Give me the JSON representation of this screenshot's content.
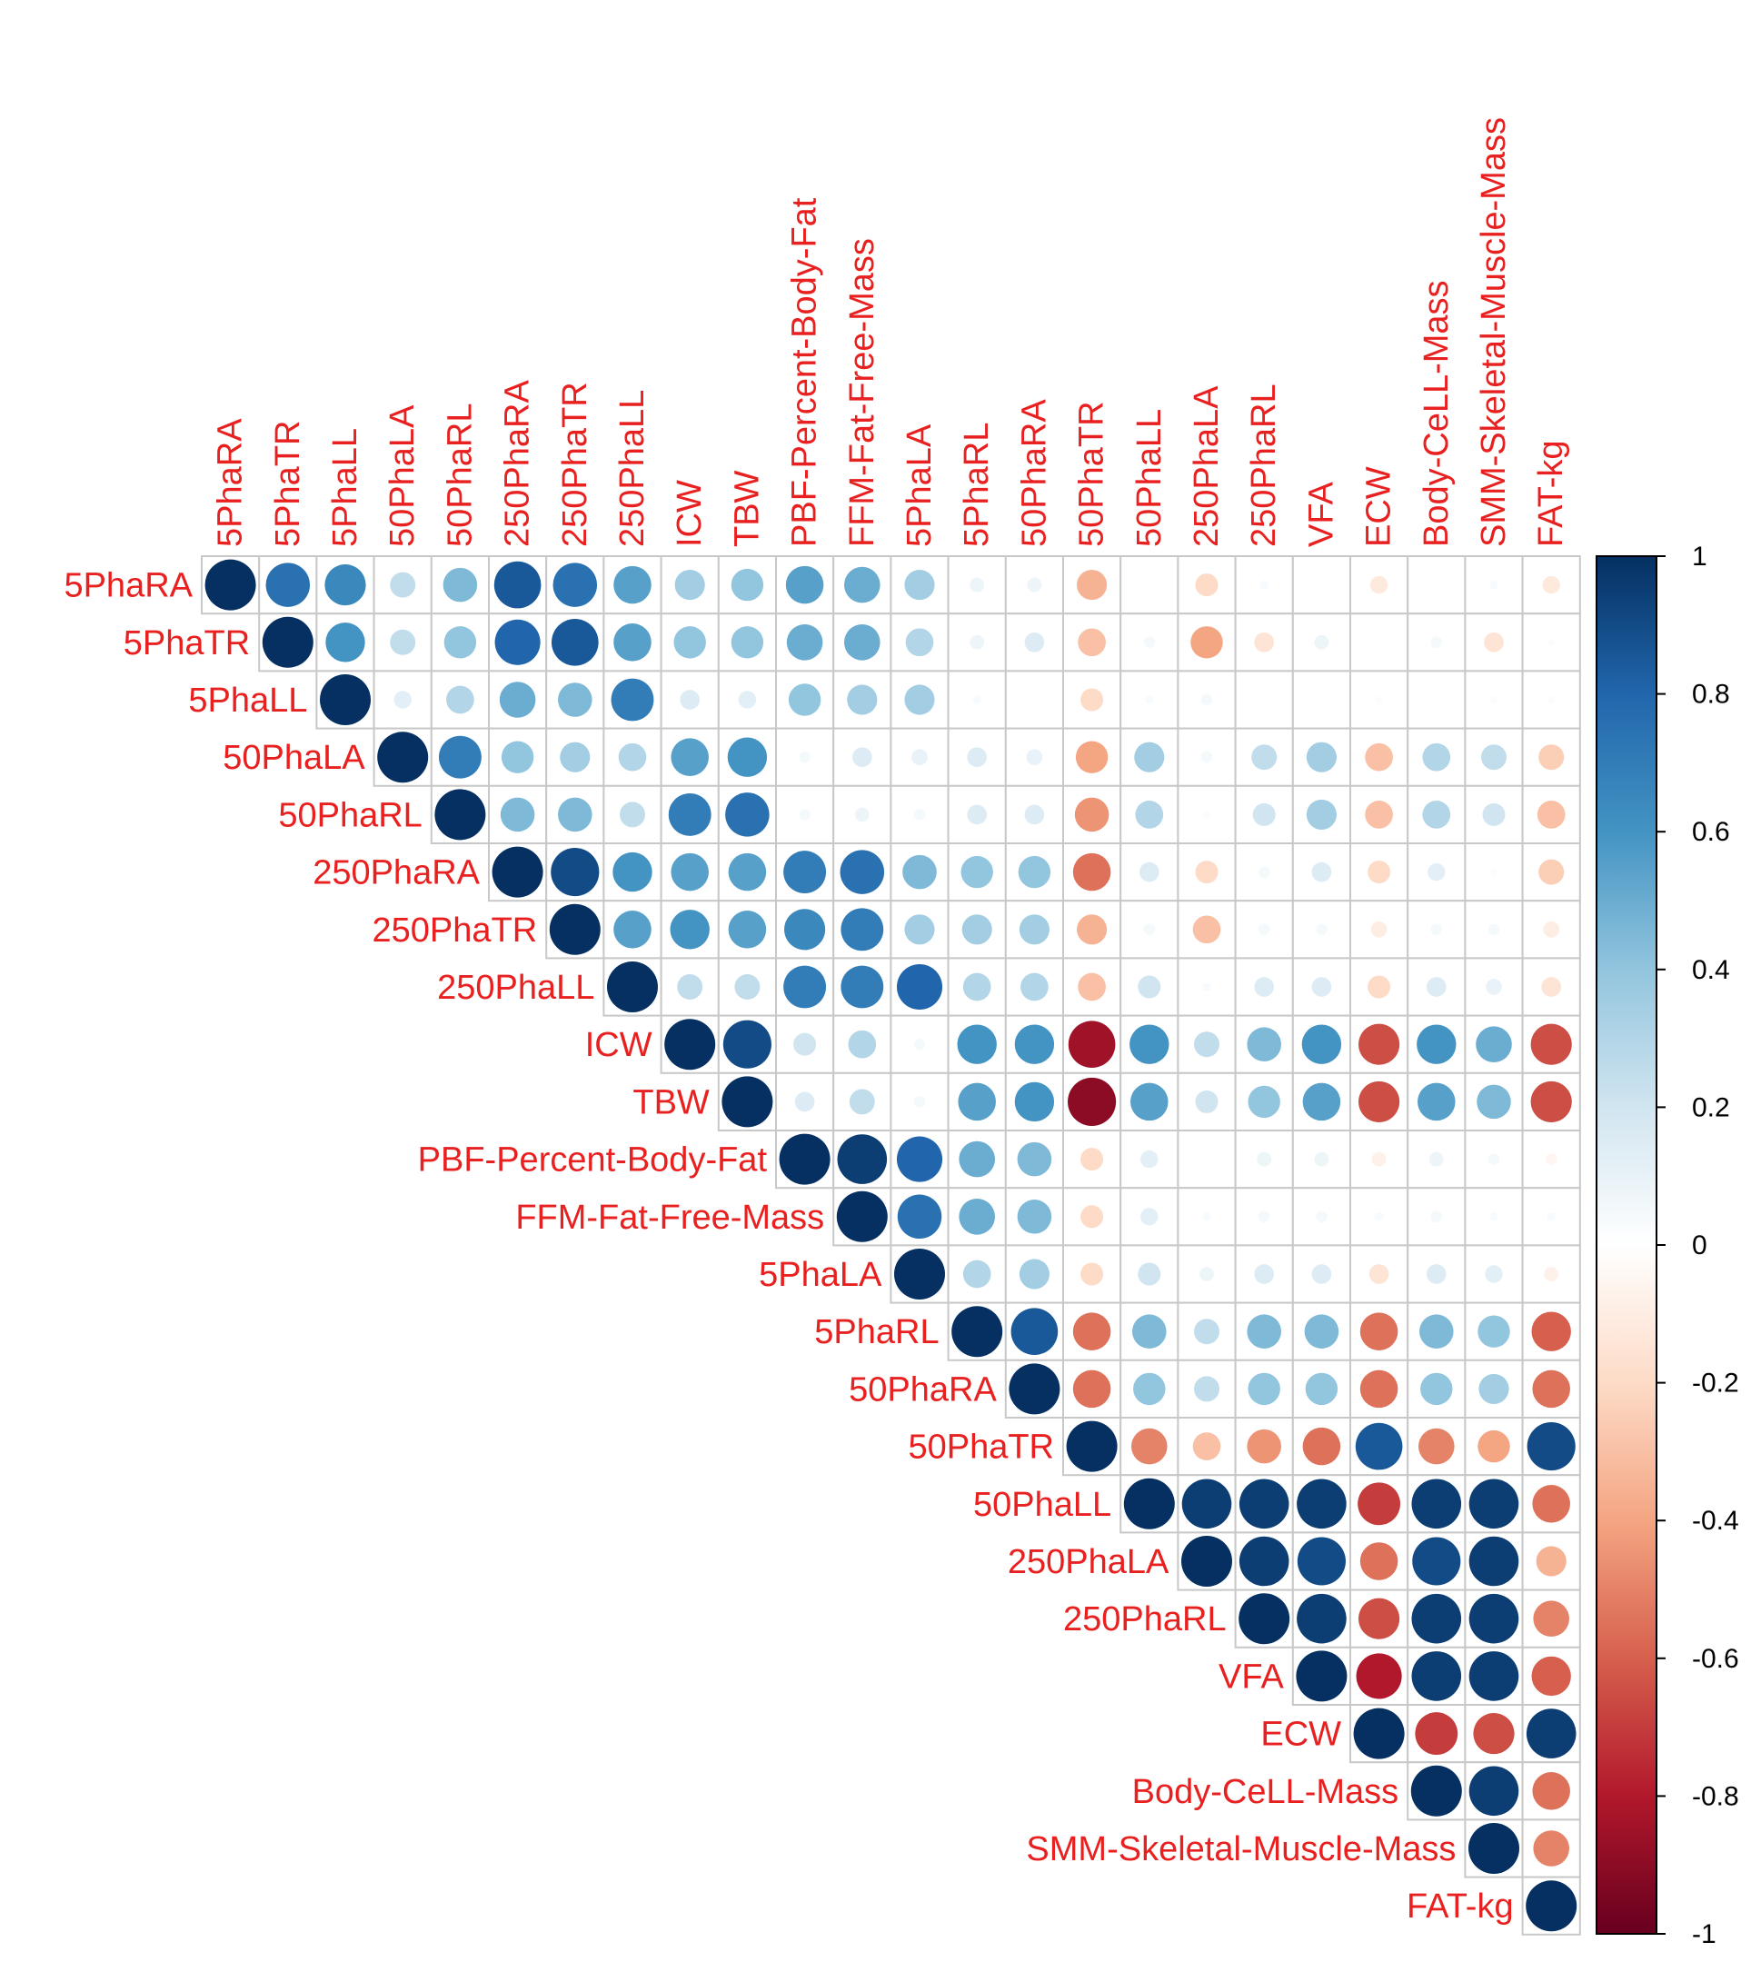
{
  "chart_data": {
    "type": "heatmap",
    "layout": "upper-triangle",
    "mark": "circle",
    "variables": [
      "5PhaRA",
      "5PhaTR",
      "5PhaLL",
      "50PhaLA",
      "50PhaRL",
      "250PhaRA",
      "250PhaTR",
      "250PhaLL",
      "ICW",
      "TBW",
      "PBF-Percent-Body-Fat",
      "FFM-Fat-Free-Mass",
      "5PhaLA",
      "5PhaRL",
      "50PhaRA",
      "50PhaTR",
      "50PhaLL",
      "250PhaLA",
      "250PhaRL",
      "VFA",
      "ECW",
      "Body-CeLL-Mass",
      "SMM-Skeletal-Muscle-Mass",
      "FAT-kg"
    ],
    "matrix_rows": [
      [
        1,
        0.75,
        0.65,
        0.25,
        0.45,
        0.85,
        0.75,
        0.55,
        0.35,
        0.4,
        0.55,
        0.5,
        0.35,
        0.08,
        0.08,
        -0.35,
        0,
        -0.2,
        0.03,
        0,
        -0.12,
        0,
        0.03,
        -0.12
      ],
      [
        1,
        0.6,
        0.25,
        0.4,
        0.8,
        0.85,
        0.55,
        0.4,
        0.4,
        0.5,
        0.5,
        0.3,
        0.08,
        0.15,
        -0.3,
        0.05,
        -0.4,
        -0.15,
        0.08,
        0,
        0.05,
        -0.15,
        0.02
      ],
      [
        1,
        0.12,
        0.3,
        0.5,
        0.45,
        0.7,
        0.15,
        0.12,
        0.4,
        0.35,
        0.35,
        0.03,
        0,
        -0.2,
        0.03,
        0.05,
        0,
        0,
        0.02,
        0,
        0.02,
        0.02
      ],
      [
        1,
        0.7,
        0.4,
        0.35,
        0.3,
        0.55,
        0.6,
        0.05,
        0.15,
        0.1,
        0.15,
        0.1,
        -0.4,
        0.35,
        0.05,
        0.25,
        0.35,
        -0.3,
        0.3,
        0.25,
        -0.25
      ],
      [
        1,
        0.45,
        0.45,
        0.25,
        0.7,
        0.75,
        0.05,
        0.08,
        0.05,
        0.15,
        0.15,
        -0.45,
        0.3,
        0.02,
        0.2,
        0.35,
        -0.3,
        0.3,
        0.2,
        -0.3
      ],
      [
        1,
        0.9,
        0.6,
        0.55,
        0.55,
        0.7,
        0.75,
        0.45,
        0.4,
        0.4,
        -0.55,
        0.15,
        -0.2,
        0.05,
        0.15,
        -0.2,
        0.12,
        0.02,
        -0.25
      ],
      [
        1,
        0.55,
        0.6,
        0.55,
        0.65,
        0.7,
        0.35,
        0.35,
        0.35,
        -0.35,
        0.05,
        -0.3,
        0.05,
        0.05,
        -0.1,
        0.05,
        0.05,
        -0.1
      ],
      [
        1,
        0.25,
        0.25,
        0.7,
        0.7,
        0.8,
        0.3,
        0.3,
        -0.3,
        0.2,
        0.03,
        0.15,
        0.15,
        -0.2,
        0.15,
        0.1,
        -0.15
      ],
      [
        1,
        0.9,
        0.2,
        0.3,
        0.05,
        0.6,
        0.6,
        -0.85,
        0.6,
        0.25,
        0.45,
        0.6,
        -0.65,
        0.6,
        0.5,
        -0.65
      ],
      [
        1,
        0.15,
        0.25,
        0.05,
        0.55,
        0.6,
        -0.9,
        0.55,
        0.2,
        0.4,
        0.55,
        -0.65,
        0.55,
        0.45,
        -0.65
      ],
      [
        1,
        0.95,
        0.8,
        0.5,
        0.45,
        -0.2,
        0.12,
        0,
        0.08,
        0.08,
        -0.08,
        0.08,
        0.05,
        -0.05
      ],
      [
        1,
        0.75,
        0.5,
        0.45,
        -0.2,
        0.12,
        0.03,
        0.05,
        0.05,
        0.03,
        0.05,
        0.03,
        0.03
      ],
      [
        1,
        0.3,
        0.35,
        -0.2,
        0.2,
        0.08,
        0.15,
        0.15,
        -0.15,
        0.15,
        0.12,
        -0.08
      ],
      [
        1,
        0.85,
        -0.55,
        0.45,
        0.25,
        0.45,
        0.45,
        -0.55,
        0.45,
        0.4,
        -0.6
      ],
      [
        1,
        -0.55,
        0.4,
        0.25,
        0.4,
        0.4,
        -0.55,
        0.4,
        0.35,
        -0.55
      ],
      [
        1,
        -0.5,
        -0.3,
        -0.45,
        -0.55,
        0.85,
        -0.5,
        -0.4,
        0.9
      ],
      [
        1,
        0.95,
        0.95,
        0.95,
        -0.7,
        0.95,
        0.95,
        -0.55
      ],
      [
        1,
        0.95,
        0.9,
        -0.55,
        0.9,
        0.95,
        -0.35
      ],
      [
        1,
        0.95,
        -0.65,
        0.95,
        0.95,
        -0.5
      ],
      [
        1,
        -0.8,
        0.95,
        0.95,
        -0.6
      ],
      [
        1,
        -0.7,
        -0.65,
        0.95
      ],
      [
        1,
        0.95,
        -0.55
      ],
      [
        1,
        -0.5
      ],
      [
        1
      ]
    ],
    "colorbar": {
      "range": [
        -1,
        1
      ],
      "ticks": [
        "1",
        "0.8",
        "0.6",
        "0.4",
        "0.2",
        "0",
        "-0.2",
        "-0.4",
        "-0.6",
        "-0.8",
        "-1"
      ],
      "colors": [
        "#67001f",
        "#b2182b",
        "#d6604d",
        "#f4a582",
        "#fddbc7",
        "#ffffff",
        "#d1e5f0",
        "#92c5de",
        "#4393c3",
        "#2166ac",
        "#053061"
      ]
    },
    "label_color": "#e8201f",
    "grid": true
  }
}
